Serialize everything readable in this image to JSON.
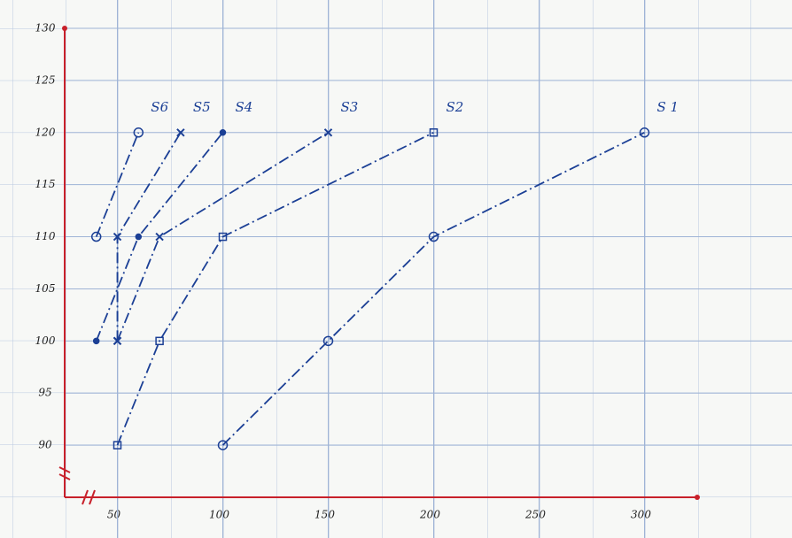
{
  "chart_data": {
    "type": "line",
    "series": [
      {
        "name": "S 1",
        "color": "#1b3f95",
        "marker": "circle",
        "x": [
          100,
          150,
          200,
          300
        ],
        "values": [
          90,
          100,
          110,
          120
        ]
      },
      {
        "name": "S2",
        "color": "#1b3f95",
        "marker": "square",
        "x": [
          50,
          70,
          100,
          200
        ],
        "values": [
          90,
          100,
          110,
          120
        ]
      },
      {
        "name": "S3",
        "color": "#1b3f95",
        "marker": "cross",
        "x": [
          50,
          70,
          150
        ],
        "values": [
          100,
          110,
          120
        ]
      },
      {
        "name": "S4",
        "color": "#1b3f95",
        "marker": "dot",
        "x": [
          40,
          60,
          100
        ],
        "values": [
          100,
          110,
          120
        ]
      },
      {
        "name": "S5",
        "color": "#1b3f95",
        "marker": "cross",
        "x": [
          50,
          50,
          80
        ],
        "values": [
          100,
          110,
          120
        ]
      },
      {
        "name": "S6",
        "color": "#1b3f95",
        "marker": "circle",
        "x": [
          40,
          60
        ],
        "values": [
          110,
          120
        ]
      }
    ],
    "xlim": [
      25,
      325
    ],
    "xticks": [
      50,
      100,
      150,
      200,
      250,
      300
    ],
    "ylim": [
      85,
      130
    ],
    "yticks": [
      90,
      95,
      100,
      105,
      110,
      115,
      120,
      125,
      130
    ],
    "grid": true,
    "axis_color": "#c8202a"
  }
}
